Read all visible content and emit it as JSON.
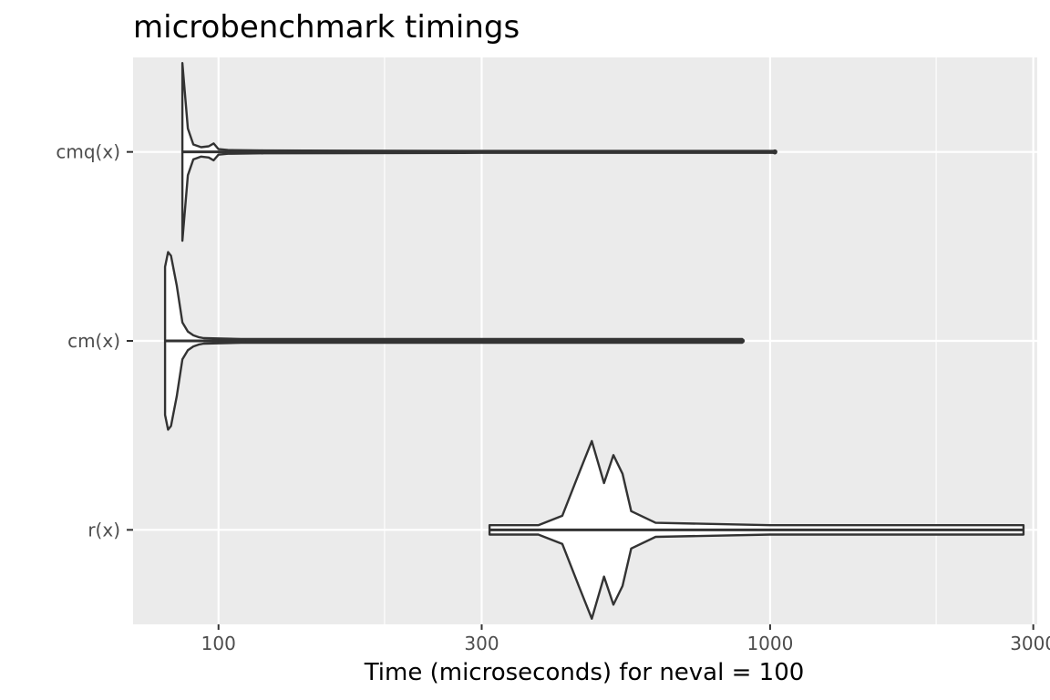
{
  "chart_data": {
    "type": "violin",
    "orientation": "horizontal",
    "title": "microbenchmark timings",
    "xlabel": "Time (microseconds) for neval = 100",
    "ylabel": "",
    "x_scale": "log10",
    "xlim": [
      70,
      3050
    ],
    "x_ticks": [
      100,
      300,
      1000,
      3000
    ],
    "x_tick_labels": [
      "100",
      "300",
      "1000",
      "3000"
    ],
    "x_minor_ticks": [
      200,
      2000
    ],
    "categories": [
      "cmq(x)",
      "cm(x)",
      "r(x)"
    ],
    "grid": true,
    "background": "#EBEBEB",
    "grid_color": "#FFFFFF",
    "line_color": "#333333",
    "series": [
      {
        "category": "cmq(x)",
        "min": 86,
        "max": 1020,
        "density": [
          [
            86,
            0.95
          ],
          [
            87,
            0.6
          ],
          [
            88,
            0.25
          ],
          [
            90,
            0.08
          ],
          [
            93,
            0.05
          ],
          [
            96,
            0.06
          ],
          [
            98,
            0.09
          ],
          [
            100,
            0.03
          ],
          [
            104,
            0.02
          ],
          [
            120,
            0.015
          ],
          [
            300,
            0.01
          ],
          [
            1020,
            0.01
          ]
        ],
        "outliers": [
          104,
          120,
          1020
        ]
      },
      {
        "category": "cm(x)",
        "min": 80,
        "max": 890,
        "density": [
          [
            80,
            0.4
          ],
          [
            81,
            0.48
          ],
          [
            82,
            0.46
          ],
          [
            84,
            0.3
          ],
          [
            86,
            0.1
          ],
          [
            88,
            0.05
          ],
          [
            90,
            0.03
          ],
          [
            92,
            0.02
          ],
          [
            94,
            0.015
          ],
          [
            110,
            0.01
          ],
          [
            250,
            0.01
          ],
          [
            890,
            0.01
          ]
        ],
        "outliers": [
          111,
          250,
          890
        ]
      },
      {
        "category": "r(x)",
        "min": 310,
        "max": 2880,
        "density": [
          [
            310,
            0.01
          ],
          [
            380,
            0.01
          ],
          [
            420,
            0.03
          ],
          [
            450,
            0.12
          ],
          [
            475,
            0.19
          ],
          [
            500,
            0.1
          ],
          [
            520,
            0.16
          ],
          [
            540,
            0.12
          ],
          [
            560,
            0.04
          ],
          [
            620,
            0.015
          ],
          [
            1000,
            0.01
          ],
          [
            2880,
            0.01
          ]
        ],
        "outliers": []
      }
    ]
  }
}
